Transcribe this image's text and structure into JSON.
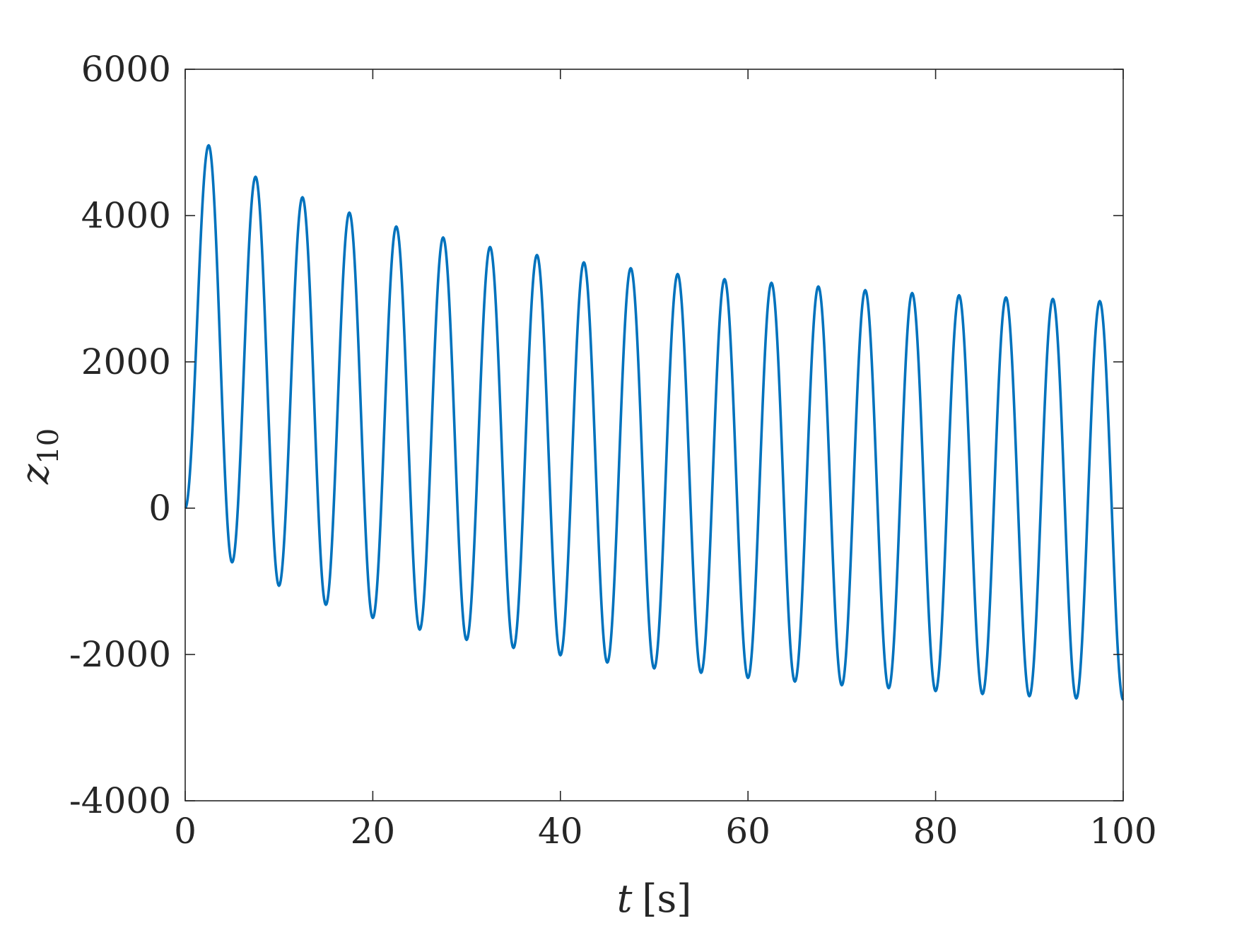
{
  "chart_data": {
    "type": "line",
    "title": "",
    "xlabel": {
      "var": "t",
      "unit": "[s]"
    },
    "ylabel": {
      "base": "z",
      "sub": "10"
    },
    "xlim": [
      0,
      100
    ],
    "ylim": [
      -4000,
      6000
    ],
    "xticks": [
      0,
      20,
      40,
      60,
      80,
      100
    ],
    "yticks": [
      -4000,
      -2000,
      0,
      2000,
      4000,
      6000
    ],
    "xtick_labels": [
      "0",
      "20",
      "40",
      "60",
      "80",
      "100"
    ],
    "ytick_labels": [
      "-4000",
      "-2000",
      "0",
      "2000",
      "4000",
      "6000"
    ],
    "grid": false,
    "line_color": "#0072BD",
    "axis_color": "#262626",
    "series": [
      {
        "x": [
          0,
          2.5,
          5,
          7.5,
          10,
          12.5,
          15,
          17.5,
          20,
          22.5,
          25,
          27.5,
          30,
          32.5,
          35,
          37.5,
          40,
          42.5,
          45,
          47.5,
          50,
          52.5,
          55,
          57.5,
          60,
          62.5,
          65,
          67.5,
          70,
          72.5,
          75,
          77.5,
          80,
          82.5,
          85,
          87.5,
          90,
          92.5,
          95,
          97.5,
          100
        ],
        "values": [
          0,
          4960,
          -740,
          4530,
          -1060,
          4250,
          -1320,
          4040,
          -1500,
          3850,
          -1660,
          3700,
          -1800,
          3570,
          -1910,
          3460,
          -2010,
          3360,
          -2110,
          3280,
          -2190,
          3200,
          -2250,
          3130,
          -2320,
          3080,
          -2370,
          3030,
          -2420,
          2980,
          -2460,
          2940,
          -2500,
          2910,
          -2540,
          2880,
          -2570,
          2860,
          -2600,
          2830,
          -2620
        ]
      }
    ]
  }
}
